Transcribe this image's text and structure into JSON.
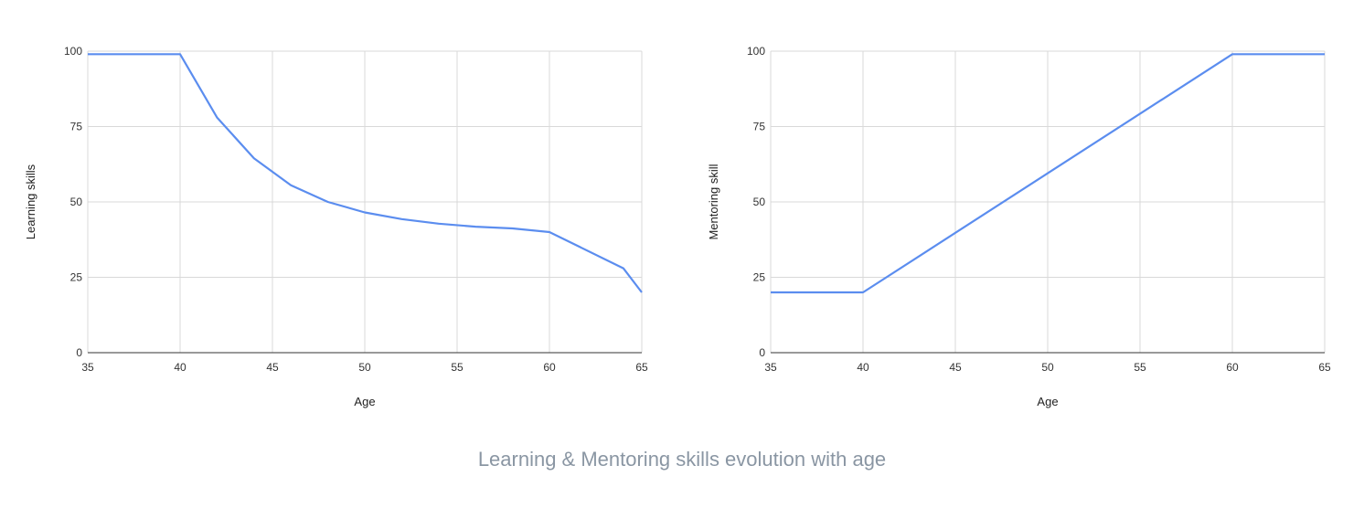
{
  "caption": "Learning & Mentoring skills evolution with age",
  "line_color": "#5b8def",
  "chart_data": [
    {
      "type": "line",
      "xlabel": "Age",
      "ylabel": "Learning skills",
      "xlim": [
        35,
        65
      ],
      "ylim": [
        0,
        100
      ],
      "xticks": [
        35,
        40,
        45,
        50,
        55,
        60,
        65
      ],
      "yticks": [
        0,
        25,
        50,
        75,
        100
      ],
      "grid": true,
      "series": [
        {
          "x": [
            35,
            40,
            42,
            44,
            46,
            48,
            50,
            52,
            54,
            56,
            58,
            60,
            64,
            65
          ],
          "y": [
            99,
            99,
            78,
            64.5,
            55.5,
            50,
            46.5,
            44.3,
            42.8,
            41.8,
            41.2,
            40,
            28,
            20
          ]
        }
      ]
    },
    {
      "type": "line",
      "xlabel": "Age",
      "ylabel": "Mentoring skill",
      "xlim": [
        35,
        65
      ],
      "ylim": [
        0,
        100
      ],
      "xticks": [
        35,
        40,
        45,
        50,
        55,
        60,
        65
      ],
      "yticks": [
        0,
        25,
        50,
        75,
        100
      ],
      "grid": true,
      "series": [
        {
          "x": [
            35,
            40,
            60,
            65
          ],
          "y": [
            20,
            20,
            99,
            99
          ]
        }
      ]
    }
  ]
}
